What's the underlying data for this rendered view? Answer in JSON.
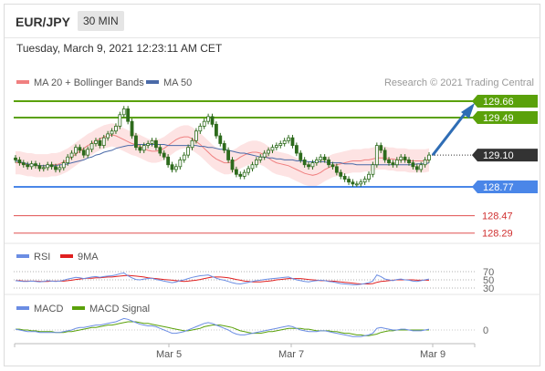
{
  "header": {
    "symbol": "EUR/JPY",
    "timeframe": "30 MIN"
  },
  "datetime": "Tuesday, March 9, 2021 12:23:11 AM CET",
  "legend": {
    "ma20": "MA 20 + Bollinger Bands",
    "ma50": "MA 50",
    "credit": "Research © 2021 Trading Central",
    "rsi": "RSI",
    "rsi9": "9MA",
    "macd": "MACD",
    "macd_signal": "MACD Signal"
  },
  "colors": {
    "resistance": "#5aa10a",
    "current": "#333333",
    "support": "#4a86e8",
    "lower_support": "#e05050",
    "ma20": "#f08080",
    "ma50": "#4a6aa8",
    "bollinger_fill": "#fde3e3",
    "candle": "#2d6b1c",
    "arrow": "#2f6db5",
    "rsi": "#6b8de3",
    "rsi9": "#e02020",
    "macd": "#6b8de3",
    "macd_signal": "#5aa10a"
  },
  "chart_data": [
    {
      "type": "candlestick",
      "title": "EUR/JPY 30 MIN",
      "ylim": [
        128.2,
        129.75
      ],
      "x_ticks": [
        "Mar 5",
        "Mar 7",
        "Mar 9"
      ],
      "levels": [
        {
          "value": 129.66,
          "label": "129.66",
          "kind": "resistance"
        },
        {
          "value": 129.49,
          "label": "129.49",
          "kind": "resistance"
        },
        {
          "value": 129.1,
          "label": "129.10",
          "kind": "current"
        },
        {
          "value": 128.77,
          "label": "128.77",
          "kind": "support"
        },
        {
          "value": 128.47,
          "label": "128.47",
          "kind": "lower_support"
        },
        {
          "value": 128.29,
          "label": "128.29",
          "kind": "lower_support"
        }
      ],
      "close": [
        129.05,
        129.02,
        129.0,
        128.98,
        129.01,
        128.99,
        128.96,
        128.97,
        129.0,
        128.98,
        128.95,
        128.97,
        129.02,
        129.08,
        129.12,
        129.18,
        129.15,
        129.1,
        129.16,
        129.22,
        129.25,
        129.2,
        129.28,
        129.32,
        129.35,
        129.4,
        129.52,
        129.58,
        129.45,
        129.3,
        129.18,
        129.15,
        129.2,
        129.22,
        129.25,
        129.18,
        129.12,
        129.08,
        129.0,
        128.95,
        128.98,
        129.05,
        129.1,
        129.18,
        129.25,
        129.35,
        129.4,
        129.45,
        129.5,
        129.42,
        129.3,
        129.22,
        129.15,
        129.05,
        128.95,
        128.9,
        128.88,
        128.92,
        128.96,
        129.0,
        129.05,
        129.08,
        129.12,
        129.15,
        129.18,
        129.2,
        129.22,
        129.25,
        129.28,
        129.2,
        129.12,
        129.05,
        129.0,
        128.98,
        129.02,
        129.05,
        129.08,
        129.05,
        129.0,
        128.98,
        128.92,
        128.88,
        128.85,
        128.82,
        128.8,
        128.8,
        128.82,
        128.85,
        128.9,
        129.0,
        129.2,
        129.15,
        129.05,
        129.02,
        129.0,
        129.05,
        129.08,
        129.05,
        129.02,
        128.98,
        128.95,
        129.0,
        129.05,
        129.1
      ],
      "ma20": [
        129.02,
        129.02,
        129.01,
        129.0,
        129.0,
        128.99,
        128.99,
        128.99,
        128.99,
        129.0,
        129.0,
        129.01,
        129.03,
        129.05,
        129.08,
        129.11,
        129.14,
        129.17,
        129.2,
        129.22,
        129.25,
        129.27,
        129.29,
        129.3,
        129.31,
        129.3,
        129.28,
        129.26,
        129.24,
        129.22,
        129.21,
        129.19,
        129.17,
        129.15,
        129.14,
        129.14,
        129.15,
        129.17,
        129.2,
        129.23,
        129.26,
        129.28,
        129.29,
        129.29,
        129.27,
        129.24,
        129.21,
        129.17,
        129.13,
        129.09,
        129.06,
        129.04,
        129.02,
        129.02,
        129.03,
        129.05,
        129.08,
        129.1,
        129.12,
        129.13,
        129.13,
        129.12,
        129.1,
        129.07,
        129.04,
        129.02,
        129.01,
        129.0,
        128.99,
        128.97,
        128.95,
        128.93,
        128.91,
        128.9,
        128.89,
        128.9,
        128.92,
        128.95,
        128.97,
        128.99,
        129.0,
        129.01,
        129.02,
        129.03,
        129.04,
        129.04,
        129.04,
        129.05,
        129.05,
        129.06,
        129.07,
        129.07,
        129.07,
        129.06,
        129.06,
        129.05,
        129.05,
        129.05,
        129.04,
        129.04,
        129.04,
        129.04,
        129.04,
        129.05
      ],
      "ma50": [
        129.04,
        129.03,
        129.02,
        129.01,
        129.0,
        129.0,
        128.99,
        128.99,
        128.99,
        128.99,
        128.99,
        129.0,
        129.0,
        129.01,
        129.02,
        129.03,
        129.04,
        129.05,
        129.07,
        129.08,
        129.1,
        129.11,
        129.13,
        129.14,
        129.15,
        129.17,
        129.18,
        129.19,
        129.2,
        129.2,
        129.21,
        129.21,
        129.21,
        129.21,
        129.21,
        129.21,
        129.21,
        129.21,
        129.2,
        129.2,
        129.2,
        129.2,
        129.2,
        129.2,
        129.2,
        129.2,
        129.19,
        129.19,
        129.18,
        129.18,
        129.17,
        129.16,
        129.16,
        129.15,
        129.14,
        129.13,
        129.12,
        129.12,
        129.11,
        129.1,
        129.09,
        129.08,
        129.08,
        129.07,
        129.07,
        129.06,
        129.06,
        129.05,
        129.05,
        129.05,
        129.04,
        129.04,
        129.04,
        129.03,
        129.03,
        129.03,
        129.03,
        129.03,
        129.02,
        129.02,
        129.02,
        129.02,
        129.01,
        129.01,
        129.01,
        129.0,
        129.0,
        129.0,
        129.0,
        129.0,
        129.0,
        129.0,
        129.0,
        129.0,
        129.0,
        129.0,
        129.0,
        129.0,
        129.0,
        129.0,
        129.01,
        129.01,
        129.01,
        129.02
      ],
      "bb_width": 0.12,
      "projection": {
        "from": 129.1,
        "to": 129.66
      }
    },
    {
      "type": "line",
      "title": "RSI",
      "ylim": [
        30,
        70
      ],
      "y_ticks": [
        "70",
        "50",
        "30"
      ],
      "rsi": [
        48,
        47,
        46,
        46,
        47,
        46,
        45,
        46,
        48,
        47,
        46,
        47,
        49,
        52,
        54,
        56,
        55,
        53,
        55,
        57,
        58,
        56,
        58,
        59,
        60,
        62,
        65,
        67,
        60,
        55,
        51,
        50,
        52,
        53,
        54,
        51,
        49,
        47,
        45,
        43,
        45,
        48,
        50,
        53,
        56,
        58,
        60,
        61,
        62,
        58,
        54,
        51,
        49,
        46,
        43,
        41,
        40,
        42,
        44,
        46,
        48,
        49,
        51,
        52,
        53,
        54,
        55,
        56,
        57,
        53,
        50,
        48,
        46,
        45,
        47,
        48,
        49,
        48,
        46,
        45,
        43,
        41,
        40,
        39,
        38,
        38,
        39,
        41,
        43,
        47,
        62,
        58,
        52,
        50,
        48,
        51,
        52,
        50,
        49,
        47,
        46,
        48,
        50,
        52
      ],
      "rsi9": [
        48,
        48,
        47,
        47,
        47,
        47,
        46,
        46,
        46,
        47,
        47,
        47,
        47,
        48,
        49,
        51,
        52,
        53,
        54,
        54,
        55,
        55,
        56,
        57,
        57,
        58,
        59,
        60,
        61,
        60,
        59,
        58,
        57,
        55,
        54,
        53,
        52,
        51,
        50,
        49,
        48,
        47,
        46,
        47,
        48,
        49,
        51,
        53,
        55,
        57,
        57,
        57,
        56,
        55,
        53,
        51,
        49,
        47,
        46,
        45,
        45,
        45,
        46,
        47,
        48,
        50,
        51,
        52,
        53,
        53,
        53,
        53,
        52,
        51,
        50,
        49,
        48,
        48,
        47,
        47,
        46,
        45,
        44,
        43,
        42,
        41,
        40,
        40,
        40,
        41,
        44,
        46,
        47,
        48,
        49,
        50,
        50,
        50,
        50,
        50,
        49,
        49,
        49,
        49
      ]
    },
    {
      "type": "line",
      "title": "MACD",
      "y_ticks": [
        "0"
      ],
      "macd": [
        0.01,
        0.0,
        -0.01,
        -0.02,
        -0.02,
        -0.02,
        -0.03,
        -0.03,
        -0.03,
        -0.03,
        -0.03,
        -0.03,
        -0.02,
        -0.01,
        0.0,
        0.02,
        0.03,
        0.03,
        0.04,
        0.05,
        0.06,
        0.06,
        0.07,
        0.08,
        0.09,
        0.1,
        0.12,
        0.14,
        0.13,
        0.11,
        0.09,
        0.07,
        0.06,
        0.05,
        0.05,
        0.04,
        0.02,
        0.0,
        -0.02,
        -0.04,
        -0.04,
        -0.03,
        -0.02,
        0.0,
        0.02,
        0.04,
        0.06,
        0.08,
        0.09,
        0.08,
        0.06,
        0.04,
        0.02,
        0.0,
        -0.03,
        -0.05,
        -0.06,
        -0.06,
        -0.05,
        -0.04,
        -0.03,
        -0.02,
        -0.01,
        0.0,
        0.01,
        0.02,
        0.03,
        0.04,
        0.05,
        0.04,
        0.02,
        0.0,
        -0.01,
        -0.02,
        -0.02,
        -0.02,
        -0.01,
        -0.01,
        -0.02,
        -0.03,
        -0.04,
        -0.05,
        -0.06,
        -0.07,
        -0.08,
        -0.08,
        -0.08,
        -0.07,
        -0.06,
        -0.04,
        0.02,
        0.03,
        0.02,
        0.01,
        0.0,
        0.0,
        0.01,
        0.01,
        0.0,
        -0.01,
        -0.01,
        -0.01,
        0.0,
        0.01
      ],
      "macd_signal": [
        0.01,
        0.01,
        0.0,
        0.0,
        -0.01,
        -0.01,
        -0.02,
        -0.02,
        -0.02,
        -0.02,
        -0.03,
        -0.03,
        -0.03,
        -0.02,
        -0.02,
        -0.01,
        0.0,
        0.01,
        0.02,
        0.03,
        0.03,
        0.04,
        0.05,
        0.06,
        0.06,
        0.07,
        0.08,
        0.09,
        0.1,
        0.1,
        0.1,
        0.09,
        0.08,
        0.08,
        0.07,
        0.06,
        0.05,
        0.04,
        0.03,
        0.02,
        0.01,
        0.0,
        -0.01,
        -0.01,
        0.0,
        0.01,
        0.02,
        0.04,
        0.05,
        0.06,
        0.06,
        0.06,
        0.05,
        0.04,
        0.03,
        0.01,
        -0.01,
        -0.02,
        -0.03,
        -0.04,
        -0.04,
        -0.04,
        -0.03,
        -0.02,
        -0.02,
        -0.01,
        0.0,
        0.01,
        0.02,
        0.02,
        0.02,
        0.02,
        0.01,
        0.01,
        0.0,
        -0.01,
        -0.01,
        -0.01,
        -0.01,
        -0.02,
        -0.02,
        -0.03,
        -0.04,
        -0.04,
        -0.05,
        -0.06,
        -0.06,
        -0.07,
        -0.07,
        -0.06,
        -0.05,
        -0.03,
        -0.02,
        -0.01,
        -0.01,
        0.0,
        0.0,
        0.0,
        0.0,
        0.0,
        0.0,
        0.0,
        0.0,
        0.0
      ]
    }
  ]
}
